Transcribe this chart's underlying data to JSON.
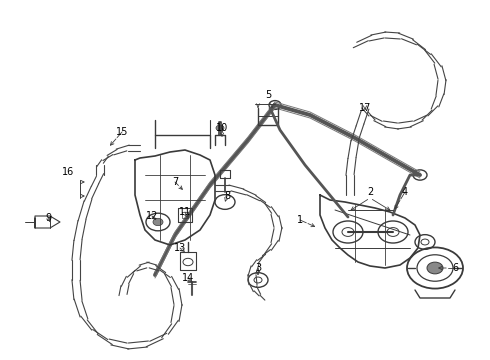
{
  "bg_color": "#ffffff",
  "line_color": "#3a3a3a",
  "label_color": "#000000",
  "lw_thick": 2.0,
  "lw_mid": 1.2,
  "lw_thin": 0.7
}
